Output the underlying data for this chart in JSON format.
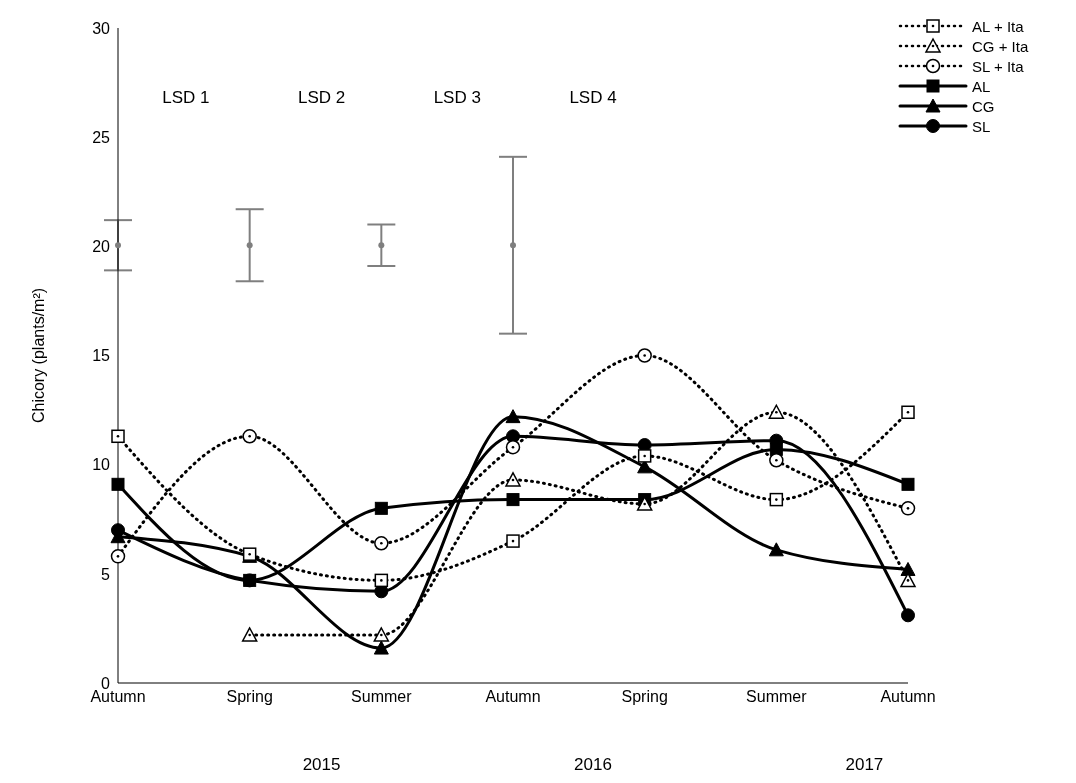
{
  "chart_data": {
    "type": "line",
    "ylabel": "Chicory (plants/m²)",
    "categories": [
      "Autumn",
      "Spring",
      "Summer",
      "Autumn",
      "Spring",
      "Summer",
      "Autumn"
    ],
    "ylim": [
      0,
      30
    ],
    "yticks": [
      0,
      5,
      10,
      15,
      20,
      25,
      30
    ],
    "grid": false,
    "legend": "top right",
    "annotations": [
      "LSD 1",
      "LSD 2",
      "LSD 3",
      "LSD 4",
      "2015",
      "2016",
      "2017"
    ],
    "series": [
      {
        "name": "AL + Ita",
        "color": "#000000",
        "marker": "square",
        "line_style": "dotted",
        "values": [
          11.3,
          5.9,
          4.7,
          6.5,
          10.4,
          8.4,
          12.4
        ]
      },
      {
        "name": "CG + Ita",
        "color": "#000000",
        "marker": "triangle",
        "line_style": "dotted",
        "values": [
          null,
          2.2,
          2.2,
          9.3,
          8.2,
          12.4,
          4.7
        ]
      },
      {
        "name": "SL + Ita",
        "color": "#000000",
        "marker": "circle",
        "line_style": "dotted",
        "values": [
          5.8,
          11.3,
          6.4,
          10.8,
          15.0,
          10.2,
          8.0
        ]
      },
      {
        "name": "AL",
        "color": "#000000",
        "marker": "square",
        "line_style": "solid",
        "values": [
          9.1,
          4.7,
          8.0,
          8.4,
          8.4,
          10.7,
          9.1
        ]
      },
      {
        "name": "CG",
        "color": "#000000",
        "marker": "triangle",
        "line_style": "solid",
        "values": [
          6.7,
          5.8,
          1.6,
          12.2,
          9.9,
          6.1,
          5.2
        ]
      },
      {
        "name": "SL",
        "color": "#000000",
        "marker": "circle",
        "line_style": "solid",
        "values": [
          7.0,
          4.7,
          4.2,
          11.3,
          10.9,
          11.1,
          3.1
        ]
      },
      {
        "type": "scatter",
        "color": "#7f7f7f",
        "marker": "circle",
        "values": [
          20.05,
          20.05,
          20.05,
          20.05,
          null,
          null,
          null
        ],
        "errors": [
          [
            18.9,
            21.2
          ],
          [
            18.4,
            21.7
          ],
          [
            19.1,
            21.0
          ],
          [
            16.0,
            24.1
          ],
          null,
          null,
          null
        ]
      }
    ]
  }
}
